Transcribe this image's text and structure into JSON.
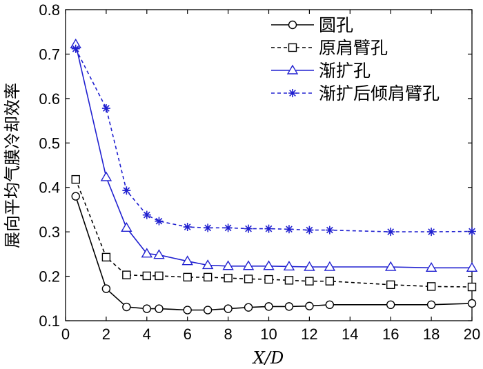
{
  "chart_data": {
    "type": "line",
    "xlabel": "X/D",
    "ylabel": "展向平均气膜冷却效率",
    "xlim": [
      0,
      20
    ],
    "ylim": [
      0.1,
      0.8
    ],
    "xticks": [
      0,
      2,
      4,
      6,
      8,
      10,
      12,
      14,
      16,
      18,
      20
    ],
    "yticks": [
      0.1,
      0.2,
      0.3,
      0.4,
      0.5,
      0.6,
      0.7,
      0.8
    ],
    "ytick_labels": [
      "0.1",
      "0.2",
      "0.3",
      "0.4",
      "0.5",
      "0.6",
      "0.7",
      "0.8"
    ],
    "grid": false,
    "legend_position": "top-right",
    "series": [
      {
        "name": "圆孔",
        "color": "#000000",
        "line_style": "solid",
        "marker": "circle",
        "x": [
          0.5,
          2,
          3,
          4,
          4.6,
          6,
          7,
          8,
          9,
          10,
          11,
          12,
          13,
          16,
          18,
          20
        ],
        "y": [
          0.38,
          0.172,
          0.131,
          0.127,
          0.127,
          0.124,
          0.124,
          0.127,
          0.13,
          0.132,
          0.132,
          0.133,
          0.136,
          0.136,
          0.136,
          0.139
        ]
      },
      {
        "name": "原肩臂孔",
        "color": "#000000",
        "line_style": "dashed",
        "marker": "square",
        "x": [
          0.5,
          2,
          3,
          4,
          4.6,
          6,
          7,
          8,
          9,
          10,
          11,
          12,
          13,
          16,
          18,
          20
        ],
        "y": [
          0.418,
          0.243,
          0.203,
          0.201,
          0.201,
          0.198,
          0.198,
          0.196,
          0.194,
          0.193,
          0.191,
          0.189,
          0.189,
          0.181,
          0.177,
          0.176
        ]
      },
      {
        "name": "渐扩孔",
        "color": "#2020d0",
        "line_style": "solid",
        "marker": "triangle",
        "x": [
          0.5,
          2,
          3,
          4,
          4.6,
          6,
          7,
          8,
          9,
          10,
          11,
          12,
          13,
          16,
          18,
          20
        ],
        "y": [
          0.722,
          0.423,
          0.309,
          0.251,
          0.248,
          0.234,
          0.225,
          0.223,
          0.223,
          0.223,
          0.222,
          0.221,
          0.221,
          0.221,
          0.219,
          0.219
        ]
      },
      {
        "name": "渐扩后倾肩臂孔",
        "color": "#2020d0",
        "line_style": "dashed",
        "marker": "star",
        "x": [
          0.5,
          2,
          3,
          4,
          4.6,
          6,
          7,
          8,
          9,
          10,
          11,
          12,
          13,
          16,
          18,
          20
        ],
        "y": [
          0.712,
          0.578,
          0.393,
          0.338,
          0.324,
          0.311,
          0.309,
          0.309,
          0.307,
          0.307,
          0.306,
          0.304,
          0.304,
          0.3,
          0.3,
          0.301
        ]
      }
    ]
  }
}
